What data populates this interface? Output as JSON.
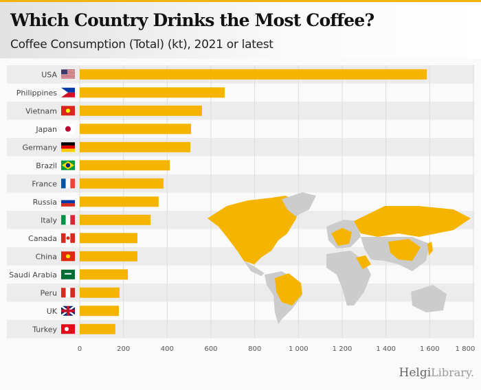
{
  "header": {
    "title": "Which Country Drinks the Most Coffee?",
    "subtitle": "Coffee Consumption (Total) (kt), 2021 or latest"
  },
  "logo": {
    "brand": "Helgi",
    "suffix": "Library."
  },
  "colors": {
    "bar": "#f5b400",
    "map_highlight": "#f5b400",
    "map_base": "#cccccc"
  },
  "chart_data": {
    "type": "bar",
    "orientation": "horizontal",
    "categories": [
      "USA",
      "Philippines",
      "Vietnam",
      "Japan",
      "Germany",
      "Brazil",
      "France",
      "Russia",
      "Italy",
      "Canada",
      "China",
      "Saudi Arabia",
      "Peru",
      "UK",
      "Turkey"
    ],
    "values": [
      1587,
      663,
      559,
      509,
      506,
      412,
      383,
      361,
      324,
      264,
      264,
      220,
      182,
      179,
      163
    ],
    "xlim": [
      0,
      1800
    ],
    "ticks": [
      0,
      200,
      400,
      600,
      800,
      1000,
      1200,
      1400,
      1600,
      1800
    ],
    "tick_labels": [
      "0",
      "200",
      "400",
      "600",
      "800",
      "1 000",
      "1 200",
      "1 400",
      "1 600",
      "1 800"
    ],
    "grid": true
  }
}
